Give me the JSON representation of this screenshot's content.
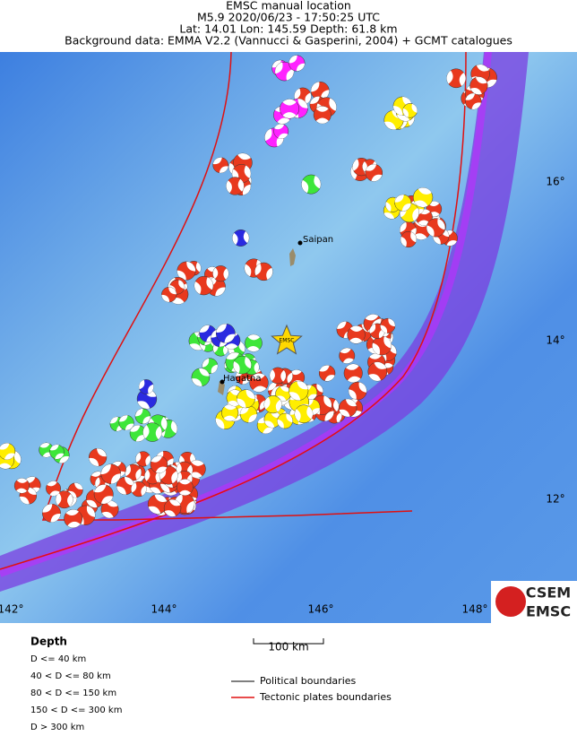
{
  "header": {
    "title": "EMSC manual location",
    "line2": "M5.9  2020/06/23 - 17:50:25 UTC",
    "line3": "Lat: 14.01    Lon: 145.59     Depth:  61.8 km",
    "line4": "Background data: EMMA V2.2 (Vannucci & Gasperini, 2004) + GCMT catalogues"
  },
  "map": {
    "lat_labels": [
      "16°",
      "14°",
      "12°"
    ],
    "lon_labels": [
      "142°",
      "144°",
      "146°",
      "148°"
    ],
    "places": [
      "Saipan",
      "Hagatna"
    ],
    "epicenter_label": "EMSC",
    "logo_top": "CSEM",
    "logo_bottom": "EMSC"
  },
  "scale": {
    "label": "100 km"
  },
  "legend": {
    "title": "Depth",
    "depth_classes": [
      "D <= 40 km",
      "40 < D <= 80 km",
      "80 < D <= 150 km",
      "150 < D <= 300 km",
      "D > 300 km"
    ],
    "lines": [
      "Political boundaries",
      "Tectonic plates boundaries"
    ]
  }
}
